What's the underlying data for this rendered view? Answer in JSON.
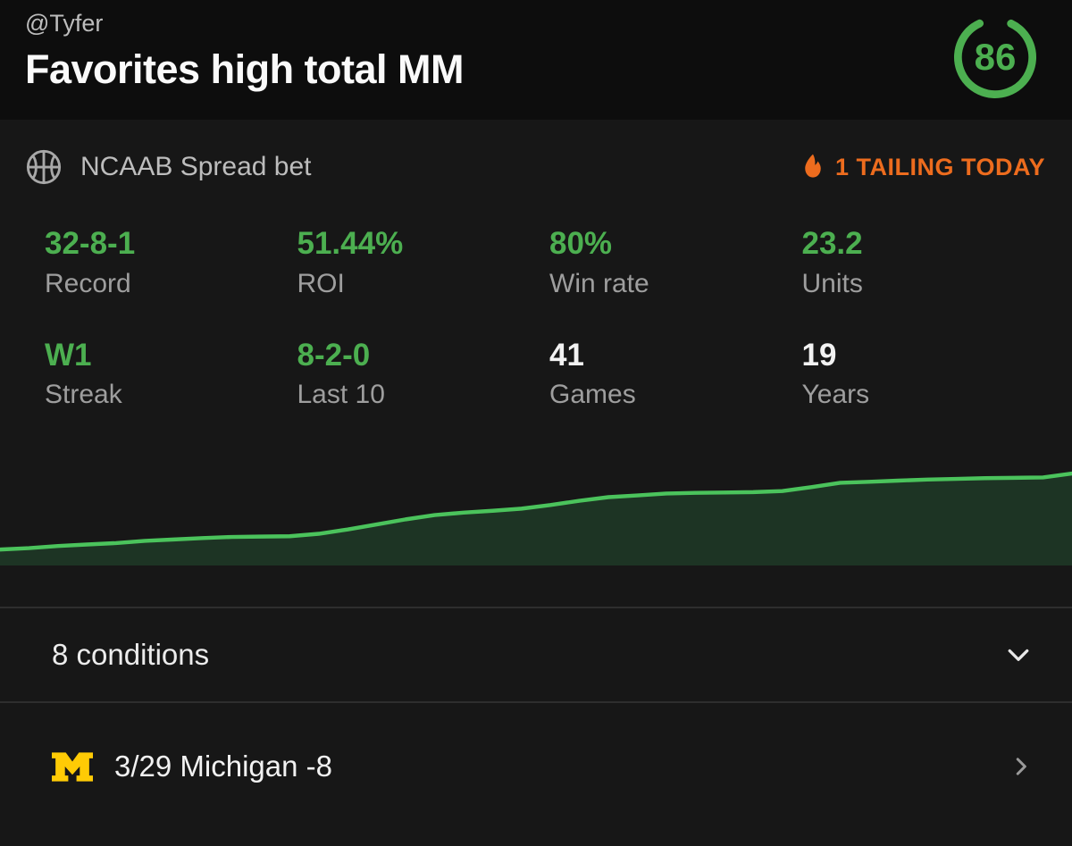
{
  "header": {
    "handle": "@Tyfer",
    "title": "Favorites high total MM",
    "score": "86"
  },
  "card": {
    "league_label": "NCAAB Spread bet",
    "tailing_label": "1 TAILING TODAY",
    "stats": [
      {
        "value": "32-8-1",
        "label": "Record",
        "highlight": true
      },
      {
        "value": "51.44%",
        "label": "ROI",
        "highlight": true
      },
      {
        "value": "80%",
        "label": "Win rate",
        "highlight": true
      },
      {
        "value": "23.2",
        "label": "Units",
        "highlight": true
      },
      {
        "value": "W1",
        "label": "Streak",
        "highlight": true
      },
      {
        "value": "8-2-0",
        "label": "Last 10",
        "highlight": true
      },
      {
        "value": "41",
        "label": "Games",
        "highlight": false
      },
      {
        "value": "19",
        "label": "Years",
        "highlight": false
      }
    ]
  },
  "conditions": {
    "label": "8 conditions"
  },
  "game": {
    "label": "3/29 Michigan -8"
  },
  "colors": {
    "green": "#4caf50",
    "chart_line": "#4bc35c",
    "chart_fill": "#1d3424",
    "orange": "#ed6c1e",
    "maize": "#ffcb05"
  },
  "chart_data": {
    "type": "area",
    "title": "",
    "xlabel": "",
    "ylabel": "Units",
    "ylim": [
      0,
      24
    ],
    "grid": false,
    "legend": false,
    "axes_hidden": true,
    "series": [
      {
        "name": "Cumulative units",
        "values": [
          2.0,
          2.4,
          3.0,
          3.4,
          3.8,
          4.4,
          4.8,
          5.2,
          5.5,
          5.6,
          5.7,
          6.4,
          7.6,
          9.0,
          10.4,
          11.6,
          12.3,
          12.8,
          13.4,
          14.4,
          15.6,
          16.6,
          17.1,
          17.6,
          17.8,
          17.9,
          18.0,
          18.3,
          19.4,
          20.6,
          20.9,
          21.2,
          21.5,
          21.7,
          21.9,
          22.0,
          22.1,
          23.2
        ]
      }
    ]
  }
}
